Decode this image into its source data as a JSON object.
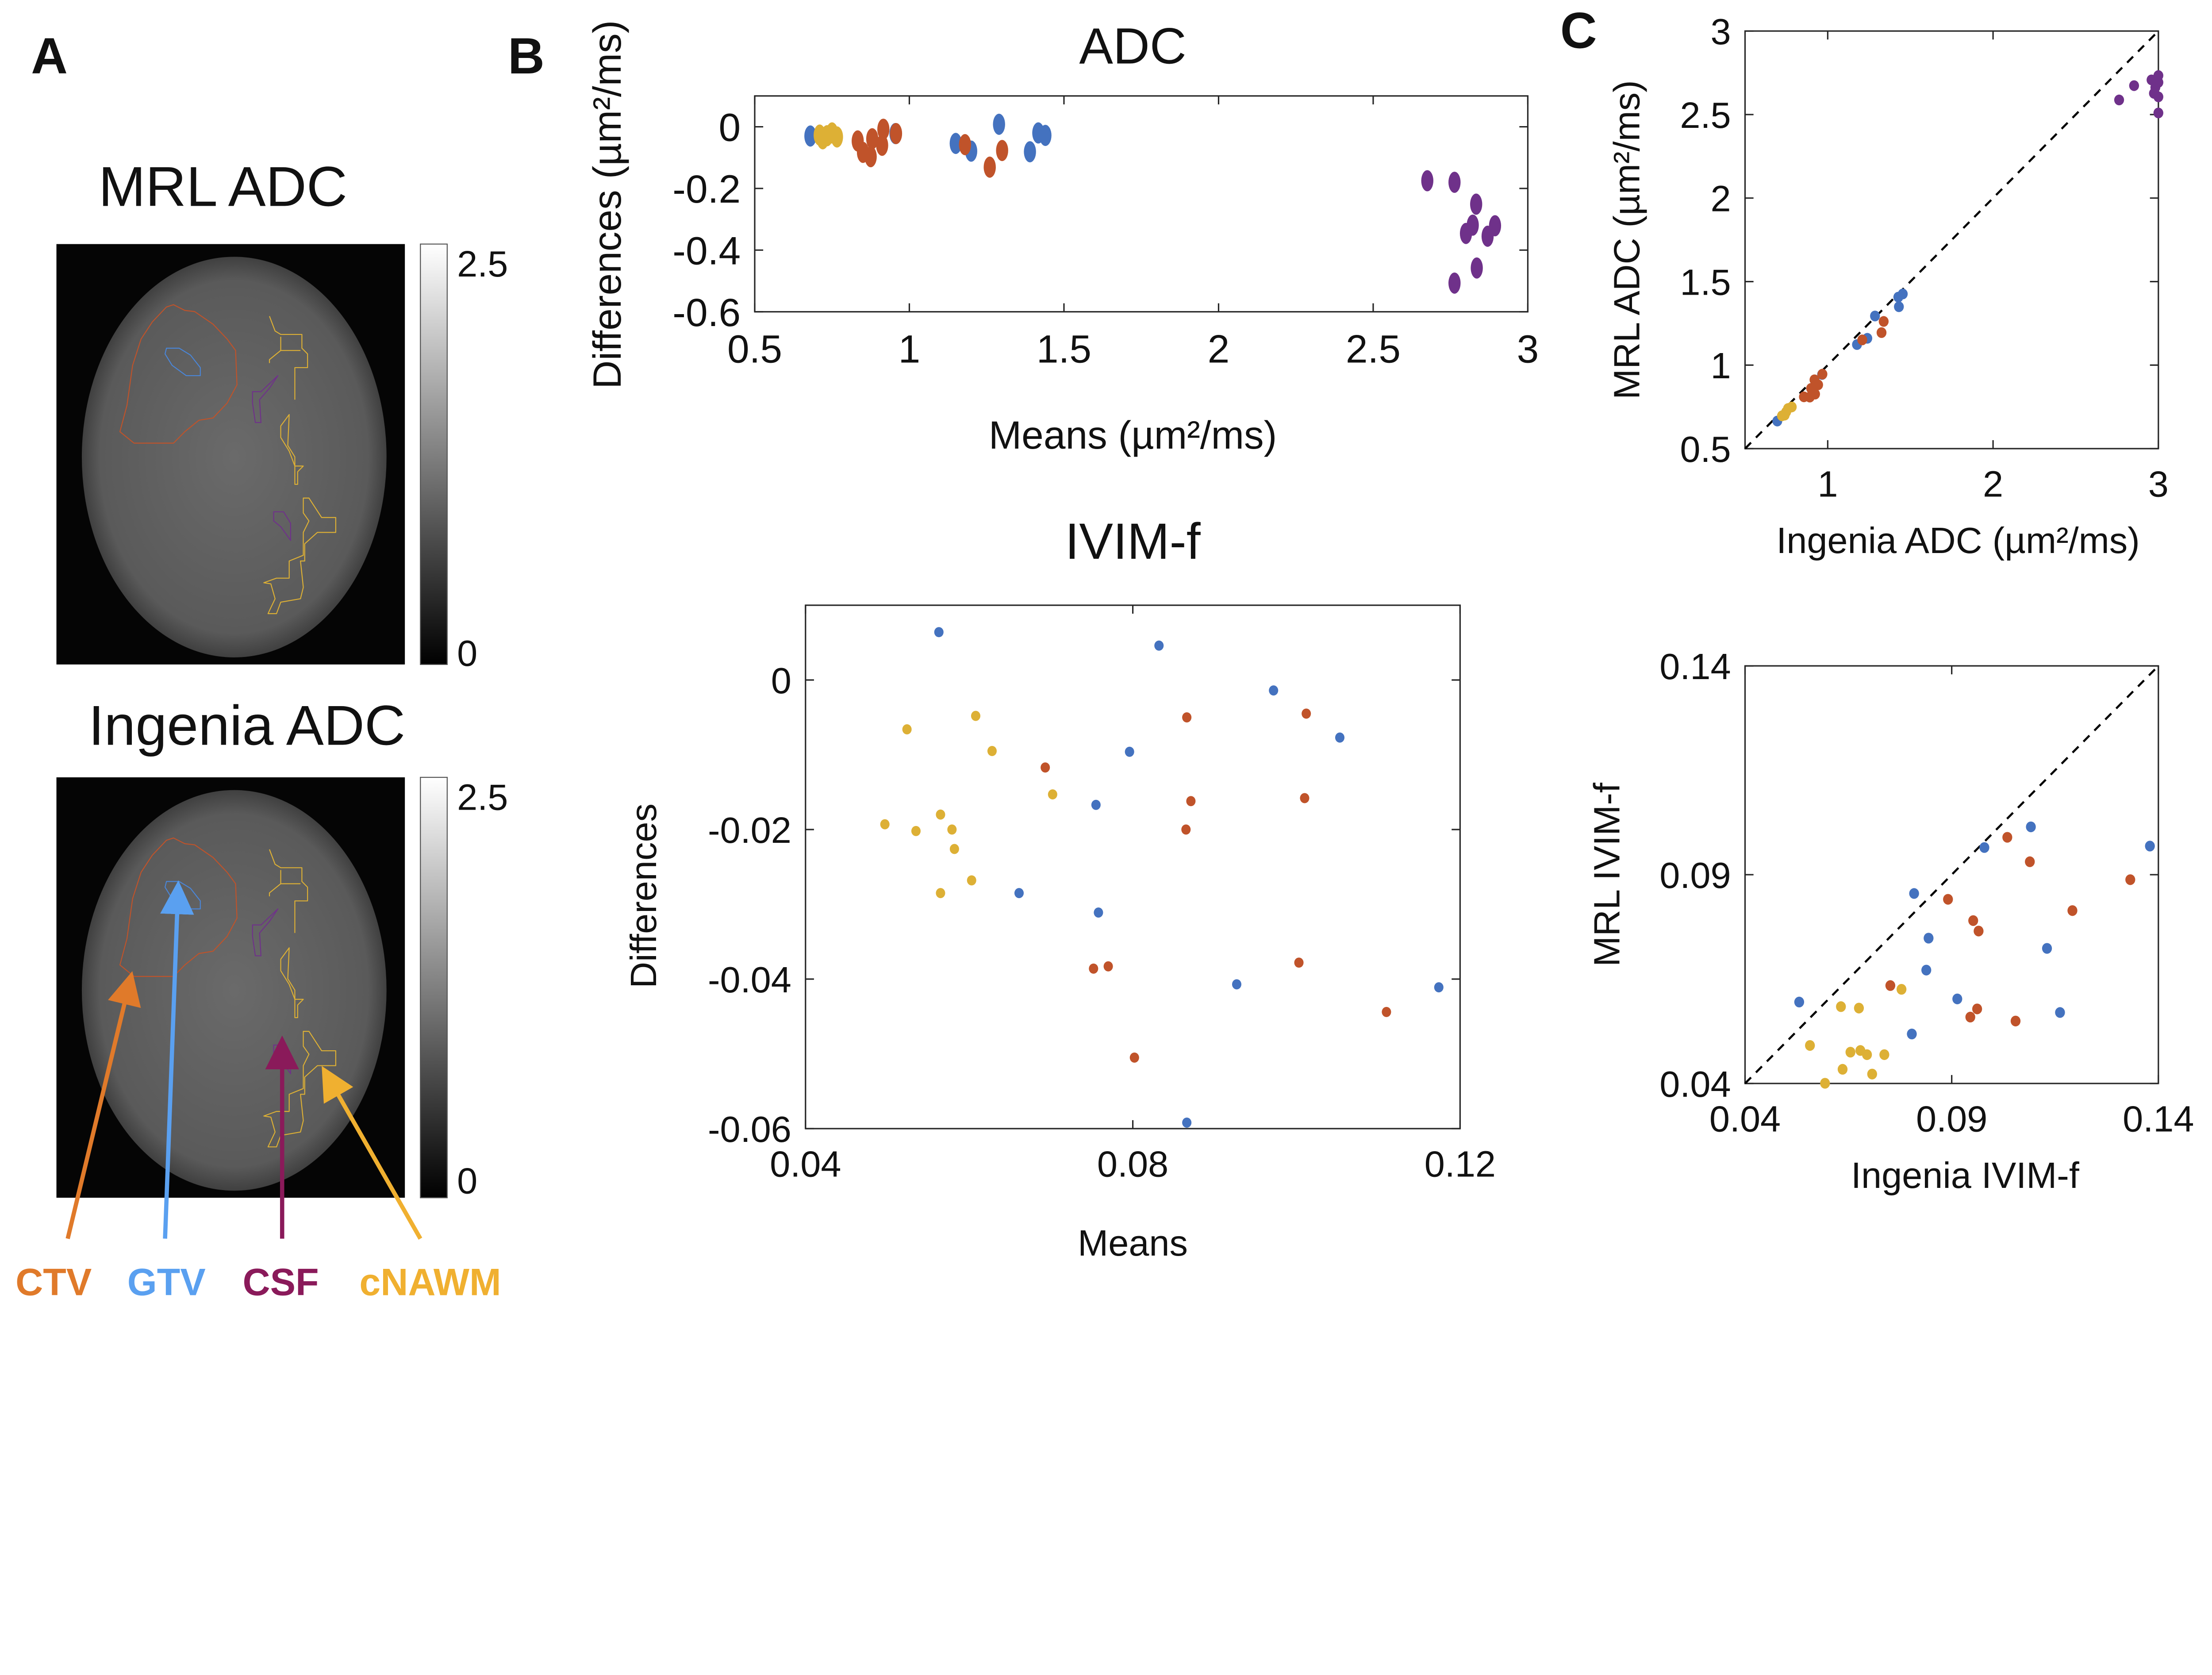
{
  "colors": {
    "GTV": "#4472bf",
    "CTV": "#c0532a",
    "cNAWM": "#ddb035",
    "CSF": "#6f318a",
    "label_CTV": "#e07a2a",
    "label_GTV": "#5aa0f0",
    "label_CSF": "#8a1a5a",
    "label_cNAWM": "#f0b030"
  },
  "panel_a": {
    "letter": "A",
    "top_title": "MRL ADC",
    "bottom_title": "Ingenia ADC",
    "colorbar_max": "2.5",
    "colorbar_min": "0",
    "labels": [
      "CTV",
      "GTV",
      "CSF",
      "cNAWM"
    ]
  },
  "panel_b": {
    "letter": "B"
  },
  "panel_c": {
    "letter": "C"
  },
  "chart_data": [
    {
      "id": "ba_adc",
      "type": "scatter",
      "title": "ADC",
      "xlabel": "Means (µm²/ms)",
      "ylabel": "Differences (µm²/ms)",
      "xlim": [
        0.5,
        3
      ],
      "ylim": [
        -0.6,
        0.1
      ],
      "xticks": [
        0.5,
        1,
        1.5,
        2,
        2.5,
        3
      ],
      "yticks": [
        0,
        -0.2,
        -0.4,
        -0.6
      ],
      "series": [
        {
          "name": "GTV",
          "color_key": "GTV",
          "points": [
            [
              1.29,
              0.008
            ],
            [
              1.417,
              -0.02
            ],
            [
              1.44,
              -0.028
            ],
            [
              1.39,
              -0.081
            ],
            [
              1.15,
              -0.054
            ],
            [
              1.2,
              -0.079
            ],
            [
              0.68,
              -0.03
            ],
            [
              0.955,
              -0.022
            ]
          ]
        },
        {
          "name": "CTV",
          "color_key": "CTV",
          "points": [
            [
              0.916,
              -0.008
            ],
            [
              0.957,
              -0.022
            ],
            [
              0.833,
              -0.046
            ],
            [
              0.88,
              -0.039
            ],
            [
              0.912,
              -0.06
            ],
            [
              0.85,
              -0.083
            ],
            [
              0.875,
              -0.097
            ],
            [
              1.18,
              -0.058
            ],
            [
              1.3,
              -0.077
            ],
            [
              1.26,
              -0.131
            ]
          ]
        },
        {
          "name": "cNAWM",
          "color_key": "cNAWM",
          "points": [
            [
              0.71,
              -0.027
            ],
            [
              0.734,
              -0.029
            ],
            [
              0.766,
              -0.033
            ],
            [
              0.72,
              -0.039
            ],
            [
              0.75,
              -0.02
            ]
          ]
        },
        {
          "name": "CSF",
          "color_key": "CSF",
          "points": [
            [
              2.675,
              -0.175
            ],
            [
              2.763,
              -0.18
            ],
            [
              2.833,
              -0.251
            ],
            [
              2.822,
              -0.319
            ],
            [
              2.894,
              -0.321
            ],
            [
              2.8,
              -0.346
            ],
            [
              2.87,
              -0.355
            ],
            [
              2.835,
              -0.458
            ],
            [
              2.763,
              -0.507
            ]
          ]
        }
      ]
    },
    {
      "id": "ba_ivim",
      "type": "scatter",
      "title": "IVIM-f",
      "xlabel": "Means",
      "ylabel": "Differences",
      "xlim": [
        0.04,
        0.12
      ],
      "ylim": [
        -0.06,
        0.01
      ],
      "xticks": [
        0.04,
        0.08,
        0.12
      ],
      "yticks": [
        0,
        -0.02,
        -0.04,
        -0.06
      ],
      "series": [
        {
          "name": "GTV",
          "color_key": "GTV",
          "points": [
            [
              0.0563,
              0.0064
            ],
            [
              0.0832,
              0.0046
            ],
            [
              0.0972,
              -0.0014
            ],
            [
              0.1053,
              -0.0077
            ],
            [
              0.0796,
              -0.0096
            ],
            [
              0.0755,
              -0.0167
            ],
            [
              0.0661,
              -0.0285
            ],
            [
              0.0758,
              -0.0311
            ],
            [
              0.0927,
              -0.0407
            ],
            [
              0.1174,
              -0.0411
            ],
            [
              0.0866,
              -0.0592
            ]
          ]
        },
        {
          "name": "CTV",
          "color_key": "CTV",
          "points": [
            [
              0.0866,
              -0.005
            ],
            [
              0.1012,
              -0.0045
            ],
            [
              0.0693,
              -0.0117
            ],
            [
              0.0871,
              -0.0162
            ],
            [
              0.101,
              -0.0158
            ],
            [
              0.0865,
              -0.02
            ],
            [
              0.0752,
              -0.0386
            ],
            [
              0.077,
              -0.0383
            ],
            [
              0.1003,
              -0.0378
            ],
            [
              0.111,
              -0.0444
            ],
            [
              0.0802,
              -0.0505
            ]
          ]
        },
        {
          "name": "cNAWM",
          "color_key": "cNAWM",
          "points": [
            [
              0.0608,
              -0.0048
            ],
            [
              0.0524,
              -0.0066
            ],
            [
              0.0628,
              -0.0095
            ],
            [
              0.0702,
              -0.0153
            ],
            [
              0.0565,
              -0.018
            ],
            [
              0.0497,
              -0.0193
            ],
            [
              0.0535,
              -0.0202
            ],
            [
              0.0579,
              -0.02
            ],
            [
              0.0582,
              -0.0226
            ],
            [
              0.0603,
              -0.0268
            ],
            [
              0.0565,
              -0.0285
            ]
          ]
        },
        {
          "name": "CSF",
          "color_key": "CSF",
          "points": []
        }
      ]
    },
    {
      "id": "sc_adc",
      "type": "scatter",
      "title": "",
      "xlabel": "Ingenia ADC (µm²/ms)",
      "ylabel": "MRL ADC (µm²/ms)",
      "derived_from": "ba_adc",
      "xlim": [
        0.5,
        3
      ],
      "ylim": [
        0.5,
        3
      ],
      "xticks": [
        1,
        2,
        3
      ],
      "yticks": [
        0.5,
        1,
        1.5,
        2,
        2.5,
        3
      ],
      "identity_line": true
    },
    {
      "id": "sc_ivim",
      "type": "scatter",
      "title": "",
      "xlabel": "Ingenia IVIM-f",
      "ylabel": "MRL IVIM-f",
      "derived_from": "ba_ivim",
      "xlim": [
        0.04,
        0.14
      ],
      "ylim": [
        0.04,
        0.14
      ],
      "xticks": [
        0.04,
        0.09,
        0.14
      ],
      "yticks": [
        0.04,
        0.09,
        0.14
      ],
      "identity_line": true
    }
  ]
}
